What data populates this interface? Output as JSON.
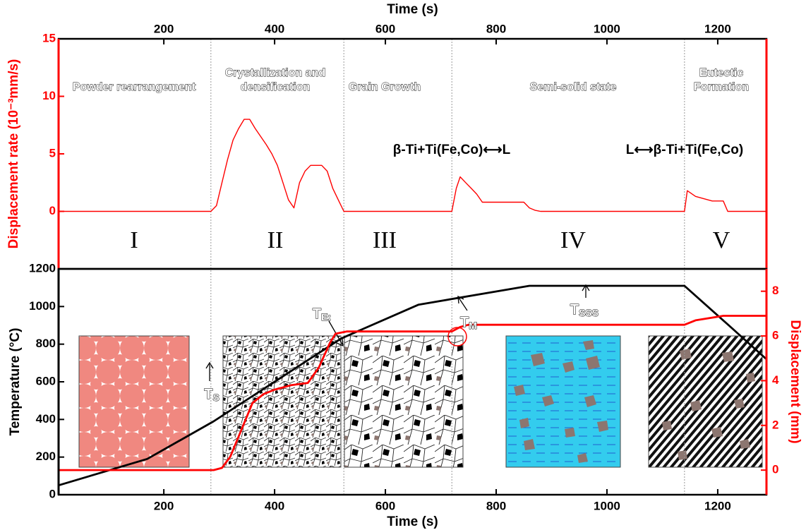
{
  "chart_data": [
    {
      "type": "line",
      "xlabel": "Time (s)",
      "ylabel": "Displacement rate (10⁻³mm/s)",
      "xlim": [
        10,
        1288
      ],
      "xticks": [
        200,
        400,
        600,
        800,
        1000,
        1200
      ],
      "ylim": [
        -5,
        15
      ],
      "yticks": [
        0,
        5,
        10,
        15
      ],
      "color": "#ff0000",
      "x": [
        10,
        285,
        295,
        305,
        315,
        325,
        335,
        345,
        355,
        365,
        375,
        385,
        395,
        405,
        415,
        425,
        435,
        445,
        455,
        465,
        475,
        485,
        495,
        505,
        515,
        525,
        535,
        720,
        728,
        735,
        745,
        755,
        765,
        775,
        785,
        850,
        860,
        870,
        880,
        1140,
        1145,
        1160,
        1175,
        1190,
        1210,
        1218,
        1225,
        1288
      ],
      "values": [
        0,
        0,
        0.5,
        2.5,
        4.5,
        6.2,
        7.2,
        8,
        8,
        7.2,
        6.5,
        5.8,
        5,
        4,
        2.5,
        1,
        0.3,
        2.5,
        3.5,
        4,
        4,
        4,
        3.5,
        2,
        1,
        0,
        0,
        0,
        2,
        3,
        2.5,
        2,
        1.5,
        0.8,
        0.8,
        0.8,
        0.3,
        0.1,
        0,
        0,
        1.8,
        1.3,
        1.1,
        0.9,
        0.9,
        0,
        0,
        0
      ],
      "phase_boundaries": [
        285,
        525,
        720,
        1140
      ],
      "phases": [
        {
          "numeral": "I",
          "title": [
            "Powder rearrangement"
          ]
        },
        {
          "numeral": "II",
          "title": [
            "Crystallization and",
            "densification"
          ]
        },
        {
          "numeral": "III",
          "title": [
            "Grain Growth"
          ]
        },
        {
          "numeral": "IV",
          "title": [
            "Semi-solid state"
          ]
        },
        {
          "numeral": "V",
          "title": [
            "Eutectic",
            "Formation"
          ]
        }
      ],
      "reactions": [
        "β-Ti+Ti(Fe,Co)⟷L",
        "L⟷β-Ti+Ti(Fe,Co)"
      ]
    },
    {
      "type": "line",
      "xlabel": "Time (s)",
      "ylabel": "Temperature (°C)",
      "y2label": "Displacement (mm)",
      "xlim": [
        10,
        1288
      ],
      "xticks": [
        200,
        400,
        600,
        800,
        1000,
        1200
      ],
      "ylim": [
        0,
        1200
      ],
      "yticks": [
        0,
        200,
        400,
        600,
        800,
        1000,
        1200
      ],
      "y2lim": [
        -1.1,
        9
      ],
      "y2ticks": [
        0,
        2,
        4,
        6,
        8
      ],
      "series": [
        {
          "color": "#000000",
          "x": [
            10,
            170,
            290,
            520,
            660,
            860,
            1140,
            1220,
            1288
          ],
          "values": [
            50,
            190,
            390,
            830,
            1010,
            1110,
            1110,
            900,
            720
          ]
        },
        {
          "color": "#ff0000",
          "axis": "y2",
          "x": [
            10,
            290,
            305,
            320,
            340,
            360,
            380,
            400,
            430,
            460,
            480,
            500,
            510,
            530,
            720,
            735,
            750,
            1140,
            1160,
            1210,
            1288
          ],
          "values": [
            0,
            0,
            0.1,
            0.6,
            1.8,
            3,
            3.4,
            3.6,
            3.8,
            3.9,
            4.6,
            5.7,
            6.1,
            6.2,
            6.2,
            6.4,
            6.5,
            6.5,
            6.7,
            6.9,
            6.9
          ]
        }
      ],
      "annotations": [
        {
          "main": "T",
          "sub": "S"
        },
        {
          "main": "T",
          "sub": "E:"
        },
        {
          "main": "T",
          "sub": "M"
        },
        {
          "main": "T",
          "sub": "SSS"
        }
      ]
    }
  ]
}
